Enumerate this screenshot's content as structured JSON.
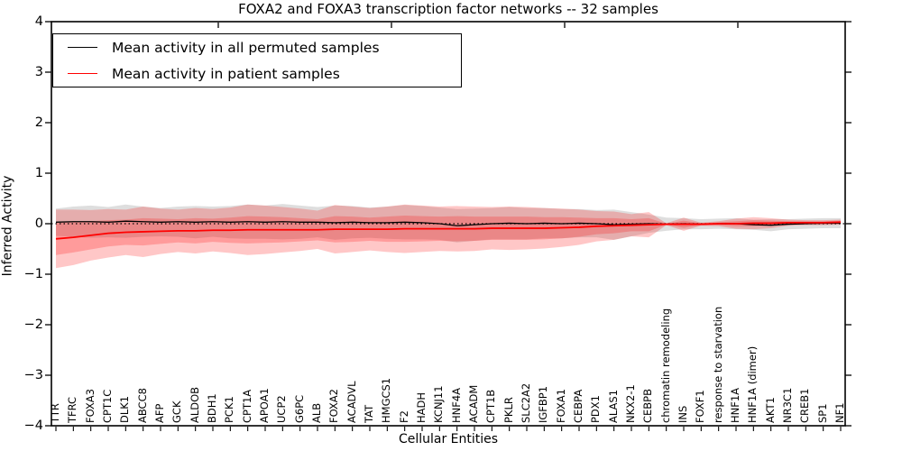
{
  "title": "FOXA2 and FOXA3 transcription factor networks -- 32 samples",
  "axes": {
    "xlabel": "Cellular Entities",
    "ylabel": "Inferred Activity",
    "yticks": [
      4,
      3,
      2,
      1,
      0,
      -1,
      -2,
      -3,
      -4
    ],
    "ytick_labels": [
      "4",
      "3",
      "2",
      "1",
      "0",
      "−1",
      "−2",
      "−3",
      "−4"
    ],
    "ylim": [
      -4,
      4
    ],
    "grid": false
  },
  "legend": {
    "position": "upper left",
    "items": [
      {
        "label": "Mean activity in all permuted samples",
        "color": "#000000"
      },
      {
        "label": "Mean activity in patient samples",
        "color": "#ff0000"
      }
    ]
  },
  "chart_data": {
    "type": "line",
    "title": "FOXA2 and FOXA3 transcription factor networks -- 32 samples",
    "xlabel": "Cellular Entities",
    "ylabel": "Inferred Activity",
    "ylim": [
      -4,
      4
    ],
    "zero_line": true,
    "categories": [
      "TTR",
      "TFRC",
      "FOXA3",
      "CPT1C",
      "DLK1",
      "ABCC8",
      "AFP",
      "GCK",
      "ALDOB",
      "BDH1",
      "PCK1",
      "CPT1A",
      "APOA1",
      "UCP2",
      "G6PC",
      "ALB",
      "FOXA2",
      "ACADVL",
      "TAT",
      "HMGCS1",
      "F2",
      "HADH",
      "KCNJ11",
      "HNF4A",
      "ACADM",
      "CPT1B",
      "PKLR",
      "SLC2A2",
      "IGFBP1",
      "FOXA1",
      "CEBPA",
      "PDX1",
      "ALAS1",
      "NKX2-1",
      "CEBPB",
      "chromatin remodeling",
      "INS",
      "FOXF1",
      "response to starvation",
      "HNF1A",
      "HNF1A (dimer)",
      "AKT1",
      "NR3C1",
      "CREB1",
      "SP1",
      "NF1"
    ],
    "series": [
      {
        "name": "Mean activity in all permuted samples",
        "color": "#000000",
        "width": 1.3,
        "values": [
          0.03,
          0.04,
          0.04,
          0.03,
          0.05,
          0.04,
          0.03,
          0.04,
          0.03,
          0.04,
          0.03,
          0.04,
          0.03,
          0.04,
          0.03,
          0.03,
          0.02,
          0.03,
          0.02,
          0.02,
          0.03,
          0.02,
          0.0,
          -0.04,
          -0.02,
          0.0,
          0.01,
          0.0,
          0.01,
          0.0,
          0.01,
          0.0,
          -0.02,
          -0.01,
          0.0,
          -0.01,
          0.0,
          -0.01,
          0.0,
          0.0,
          -0.02,
          -0.03,
          -0.01,
          0.0,
          0.01,
          0.01
        ]
      },
      {
        "name": "Mean activity in patient samples",
        "color": "#ff0000",
        "width": 1.8,
        "values": [
          -0.3,
          -0.27,
          -0.23,
          -0.19,
          -0.17,
          -0.16,
          -0.15,
          -0.14,
          -0.14,
          -0.13,
          -0.13,
          -0.12,
          -0.12,
          -0.12,
          -0.12,
          -0.12,
          -0.11,
          -0.11,
          -0.11,
          -0.11,
          -0.1,
          -0.1,
          -0.1,
          -0.1,
          -0.1,
          -0.09,
          -0.09,
          -0.09,
          -0.09,
          -0.08,
          -0.07,
          -0.05,
          -0.04,
          -0.03,
          -0.02,
          -0.01,
          -0.01,
          -0.01,
          0.0,
          0.0,
          0.01,
          0.01,
          0.02,
          0.02,
          0.02,
          0.03
        ]
      }
    ],
    "bands": [
      {
        "name": "permuted-samples-range",
        "color": "#888888",
        "opacity": 0.28,
        "upper": [
          0.3,
          0.34,
          0.36,
          0.33,
          0.38,
          0.34,
          0.31,
          0.34,
          0.35,
          0.34,
          0.35,
          0.38,
          0.36,
          0.39,
          0.36,
          0.33,
          0.36,
          0.35,
          0.32,
          0.34,
          0.37,
          0.35,
          0.32,
          0.29,
          0.3,
          0.31,
          0.33,
          0.31,
          0.31,
          0.29,
          0.29,
          0.27,
          0.28,
          0.23,
          0.18,
          0.12,
          0.11,
          0.09,
          0.1,
          0.11,
          0.08,
          0.09,
          0.09,
          0.1,
          0.11,
          0.11
        ],
        "lower": [
          -0.24,
          -0.26,
          -0.28,
          -0.27,
          -0.28,
          -0.26,
          -0.25,
          -0.26,
          -0.29,
          -0.26,
          -0.29,
          -0.3,
          -0.3,
          -0.31,
          -0.3,
          -0.27,
          -0.32,
          -0.29,
          -0.28,
          -0.3,
          -0.31,
          -0.31,
          -0.32,
          -0.37,
          -0.34,
          -0.31,
          -0.31,
          -0.31,
          -0.29,
          -0.29,
          -0.27,
          -0.27,
          -0.32,
          -0.25,
          -0.18,
          -0.14,
          -0.11,
          -0.11,
          -0.1,
          -0.11,
          -0.12,
          -0.15,
          -0.11,
          -0.1,
          -0.09,
          -0.09
        ]
      },
      {
        "name": "patient-samples-outer-range",
        "color": "#ff0000",
        "opacity": 0.22,
        "upper": [
          0.28,
          0.28,
          0.27,
          0.29,
          0.28,
          0.34,
          0.3,
          0.28,
          0.31,
          0.29,
          0.32,
          0.38,
          0.36,
          0.33,
          0.3,
          0.26,
          0.37,
          0.34,
          0.31,
          0.34,
          0.38,
          0.36,
          0.34,
          0.35,
          0.34,
          0.33,
          0.34,
          0.33,
          0.31,
          0.3,
          0.28,
          0.25,
          0.24,
          0.19,
          0.23,
          0.01,
          0.12,
          0.02,
          0.05,
          0.1,
          0.13,
          0.11,
          0.08,
          0.07,
          0.07,
          0.08
        ],
        "lower": [
          -0.88,
          -0.82,
          -0.73,
          -0.67,
          -0.62,
          -0.66,
          -0.6,
          -0.56,
          -0.59,
          -0.55,
          -0.58,
          -0.62,
          -0.6,
          -0.57,
          -0.54,
          -0.5,
          -0.59,
          -0.56,
          -0.53,
          -0.56,
          -0.58,
          -0.56,
          -0.54,
          -0.55,
          -0.54,
          -0.51,
          -0.52,
          -0.51,
          -0.49,
          -0.46,
          -0.42,
          -0.35,
          -0.32,
          -0.25,
          -0.27,
          -0.03,
          -0.14,
          -0.04,
          -0.05,
          -0.1,
          -0.11,
          -0.09,
          -0.04,
          -0.03,
          -0.03,
          -0.02
        ]
      },
      {
        "name": "patient-samples-inner-range",
        "color": "#ff0000",
        "opacity": 0.22,
        "upper": [
          0.02,
          0.03,
          0.05,
          0.07,
          0.08,
          0.11,
          0.1,
          0.09,
          0.11,
          0.1,
          0.12,
          0.15,
          0.14,
          0.13,
          0.11,
          0.09,
          0.15,
          0.14,
          0.12,
          0.14,
          0.16,
          0.15,
          0.14,
          0.15,
          0.14,
          0.14,
          0.14,
          0.14,
          0.13,
          0.13,
          0.12,
          0.11,
          0.11,
          0.09,
          0.11,
          0.0,
          0.06,
          0.01,
          0.03,
          0.05,
          0.07,
          0.06,
          0.05,
          0.05,
          0.05,
          0.06
        ],
        "lower": [
          -0.62,
          -0.57,
          -0.51,
          -0.45,
          -0.42,
          -0.43,
          -0.4,
          -0.37,
          -0.39,
          -0.36,
          -0.38,
          -0.39,
          -0.38,
          -0.37,
          -0.35,
          -0.33,
          -0.37,
          -0.36,
          -0.34,
          -0.36,
          -0.36,
          -0.35,
          -0.34,
          -0.35,
          -0.34,
          -0.32,
          -0.32,
          -0.32,
          -0.31,
          -0.29,
          -0.26,
          -0.21,
          -0.19,
          -0.15,
          -0.15,
          -0.02,
          -0.08,
          -0.03,
          -0.03,
          -0.05,
          -0.05,
          -0.04,
          -0.01,
          -0.01,
          -0.01,
          0.0
        ]
      }
    ]
  }
}
